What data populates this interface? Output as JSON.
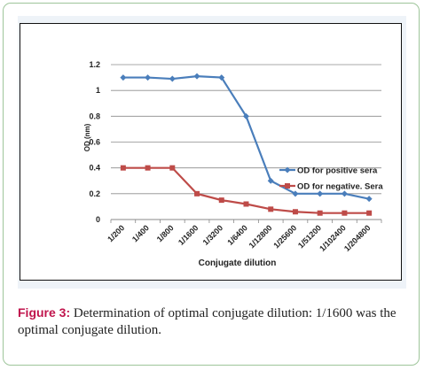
{
  "figure": {
    "caption_label": "Figure 3:",
    "caption_text": " Determination of optimal conjugate dilution: 1/1600 was the optimal conjugate dilution."
  },
  "chart_data": {
    "type": "line",
    "title": "",
    "xlabel": "Conjugate dilution",
    "ylabel": "OD (nm)",
    "ylim": [
      0,
      1.2
    ],
    "yticks": [
      "0",
      "0.2",
      "0.4",
      "0.6",
      "0.8",
      "1",
      "1.2"
    ],
    "grid": true,
    "legend_position": "right",
    "categories": [
      "1/200",
      "1/400",
      "1/800",
      "1/1600",
      "1/3200",
      "1/6400",
      "1/12800",
      "1/25600",
      "1/51200",
      "1/102400",
      "1/204800"
    ],
    "series": [
      {
        "name": "OD for positive sera",
        "color": "#4a7ebb",
        "marker": "diamond",
        "values": [
          1.1,
          1.1,
          1.09,
          1.11,
          1.1,
          0.8,
          0.3,
          0.2,
          0.2,
          0.2,
          0.16
        ]
      },
      {
        "name": "OD for negative. Sera",
        "color": "#be4b48",
        "marker": "square",
        "values": [
          0.4,
          0.4,
          0.4,
          0.2,
          0.15,
          0.12,
          0.08,
          0.06,
          0.05,
          0.05,
          0.05
        ]
      }
    ]
  }
}
